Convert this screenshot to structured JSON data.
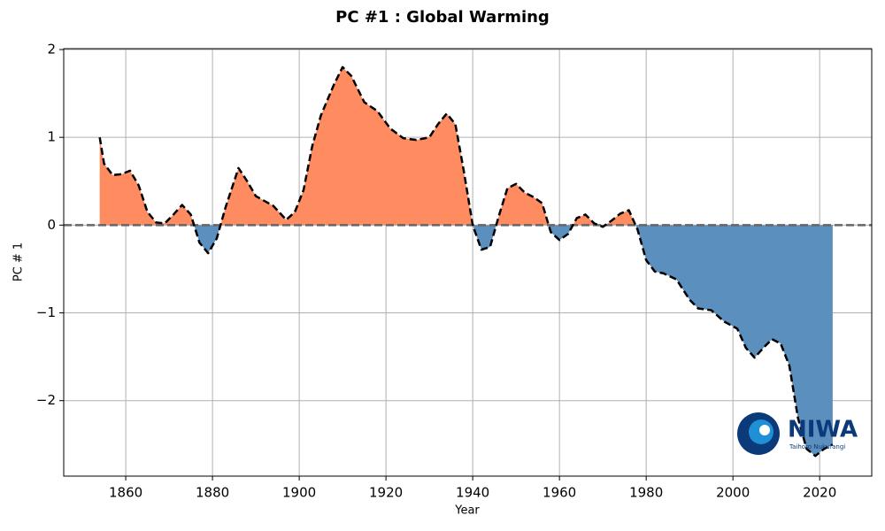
{
  "chart_data": {
    "type": "area",
    "title": "PC #1 : Global Warming",
    "xlabel": "Year",
    "ylabel": "PC # 1",
    "x": [
      1854,
      1855,
      1857,
      1859,
      1861,
      1863,
      1865,
      1867,
      1869,
      1871,
      1873,
      1875,
      1877,
      1879,
      1881,
      1883,
      1886,
      1888,
      1890,
      1894,
      1897,
      1899,
      1901,
      1903,
      1905,
      1908,
      1910,
      1912,
      1915,
      1918,
      1921,
      1924,
      1927,
      1930,
      1932,
      1934,
      1936,
      1938,
      1940,
      1942,
      1944,
      1946,
      1948,
      1950,
      1952,
      1954,
      1956,
      1958,
      1960,
      1962,
      1964,
      1966,
      1968,
      1970,
      1972,
      1974,
      1976,
      1978,
      1980,
      1982,
      1984,
      1987,
      1990,
      1992,
      1995,
      1998,
      2001,
      2003,
      2005,
      2007,
      2009,
      2011,
      2013,
      2015,
      2017,
      2019,
      2021,
      2023
    ],
    "values": [
      1.0,
      0.7,
      0.57,
      0.58,
      0.62,
      0.45,
      0.15,
      0.03,
      0.02,
      0.12,
      0.23,
      0.12,
      -0.2,
      -0.32,
      -0.15,
      0.2,
      0.65,
      0.5,
      0.33,
      0.22,
      0.06,
      0.15,
      0.4,
      0.9,
      1.25,
      1.6,
      1.8,
      1.7,
      1.4,
      1.3,
      1.1,
      0.99,
      0.97,
      1.0,
      1.15,
      1.27,
      1.15,
      0.6,
      0.0,
      -0.28,
      -0.25,
      0.1,
      0.42,
      0.47,
      0.37,
      0.32,
      0.25,
      -0.08,
      -0.17,
      -0.1,
      0.08,
      0.12,
      0.02,
      -0.02,
      0.05,
      0.13,
      0.17,
      -0.05,
      -0.4,
      -0.53,
      -0.55,
      -0.62,
      -0.85,
      -0.95,
      -0.97,
      -1.1,
      -1.18,
      -1.4,
      -1.51,
      -1.4,
      -1.3,
      -1.35,
      -1.6,
      -2.2,
      -2.55,
      -2.63,
      -2.55,
      -2.5
    ],
    "positive_color": "#ff8c61",
    "negative_color": "#5a8fbe",
    "line_color": "#000000",
    "xlim": [
      1845.7,
      2032
    ],
    "ylim": [
      -2.86,
      2.01
    ],
    "xticks": [
      1860,
      1880,
      1900,
      1920,
      1940,
      1960,
      1980,
      2000,
      2020
    ],
    "yticks": [
      {
        "value": -2,
        "label": "−2"
      },
      {
        "value": -1,
        "label": "−1"
      },
      0,
      1,
      2
    ],
    "grid": true,
    "logo": {
      "name": "NIWA",
      "subtitle": "Taihoro Nukurangi"
    }
  }
}
